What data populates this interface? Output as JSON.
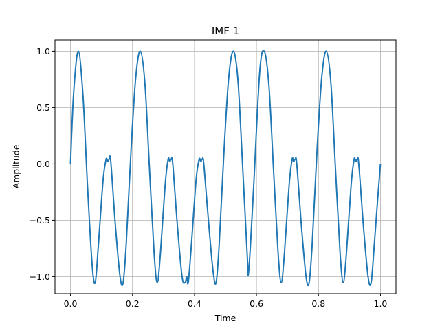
{
  "chart_data": {
    "type": "line",
    "title": "IMF 1",
    "xlabel": "Time",
    "ylabel": "Amplitude",
    "xlim": [
      -0.05,
      1.05
    ],
    "ylim": [
      -1.15,
      1.1
    ],
    "grid": true,
    "x_ticks": [
      0.0,
      0.2,
      0.4,
      0.6,
      0.8,
      1.0
    ],
    "x_tick_labels": [
      "0.0",
      "0.2",
      "0.4",
      "0.6",
      "0.8",
      "1.0"
    ],
    "y_ticks": [
      -1.0,
      -0.5,
      0.0,
      0.5,
      1.0
    ],
    "y_tick_labels": [
      "−1.0",
      "−0.5",
      "0.0",
      "0.5",
      "1.0"
    ],
    "line_color": "#1f77b4",
    "series": [
      {
        "x": [
          0.0,
          0.01,
          0.025,
          0.04,
          0.055,
          0.07,
          0.08,
          0.09,
          0.105,
          0.115,
          0.12,
          0.125,
          0.13,
          0.145,
          0.16,
          0.17,
          0.18,
          0.195,
          0.21,
          0.225,
          0.24,
          0.255,
          0.27,
          0.28,
          0.29,
          0.305,
          0.315,
          0.32,
          0.325,
          0.33,
          0.345,
          0.36,
          0.37,
          0.375,
          0.38,
          0.39,
          0.405,
          0.415,
          0.42,
          0.425,
          0.43,
          0.445,
          0.46,
          0.47,
          0.48,
          0.495,
          0.51,
          0.525,
          0.54,
          0.555,
          0.57,
          0.575,
          0.59,
          0.61,
          0.625,
          0.64,
          0.655,
          0.67,
          0.68,
          0.69,
          0.705,
          0.715,
          0.72,
          0.725,
          0.73,
          0.745,
          0.76,
          0.77,
          0.78,
          0.795,
          0.81,
          0.825,
          0.84,
          0.855,
          0.87,
          0.88,
          0.89,
          0.905,
          0.915,
          0.92,
          0.925,
          0.93,
          0.945,
          0.96,
          0.97,
          0.98,
          0.99,
          1.0
        ],
        "y": [
          0.0,
          0.62,
          1.0,
          0.62,
          -0.2,
          -0.9,
          -1.05,
          -0.72,
          -0.15,
          0.04,
          0.02,
          0.04,
          0.02,
          -0.55,
          -1.0,
          -1.05,
          -0.7,
          0.1,
          0.75,
          1.0,
          0.72,
          -0.05,
          -0.8,
          -1.05,
          -0.8,
          -0.2,
          0.04,
          0.02,
          0.04,
          0.0,
          -0.55,
          -1.0,
          -1.05,
          -1.0,
          -1.05,
          -0.72,
          -0.15,
          0.04,
          0.02,
          0.04,
          0.0,
          -0.5,
          -0.95,
          -1.05,
          -0.7,
          0.1,
          0.75,
          1.0,
          0.75,
          0.0,
          -0.8,
          -0.95,
          -0.25,
          0.8,
          1.0,
          0.7,
          -0.05,
          -0.8,
          -1.05,
          -0.8,
          -0.2,
          0.04,
          0.02,
          0.04,
          0.0,
          -0.55,
          -1.0,
          -1.05,
          -0.7,
          0.1,
          0.75,
          1.0,
          0.72,
          -0.05,
          -0.8,
          -1.05,
          -0.8,
          -0.2,
          0.04,
          0.02,
          0.04,
          0.0,
          -0.55,
          -1.0,
          -1.05,
          -0.72,
          -0.35,
          0.0
        ]
      }
    ]
  }
}
